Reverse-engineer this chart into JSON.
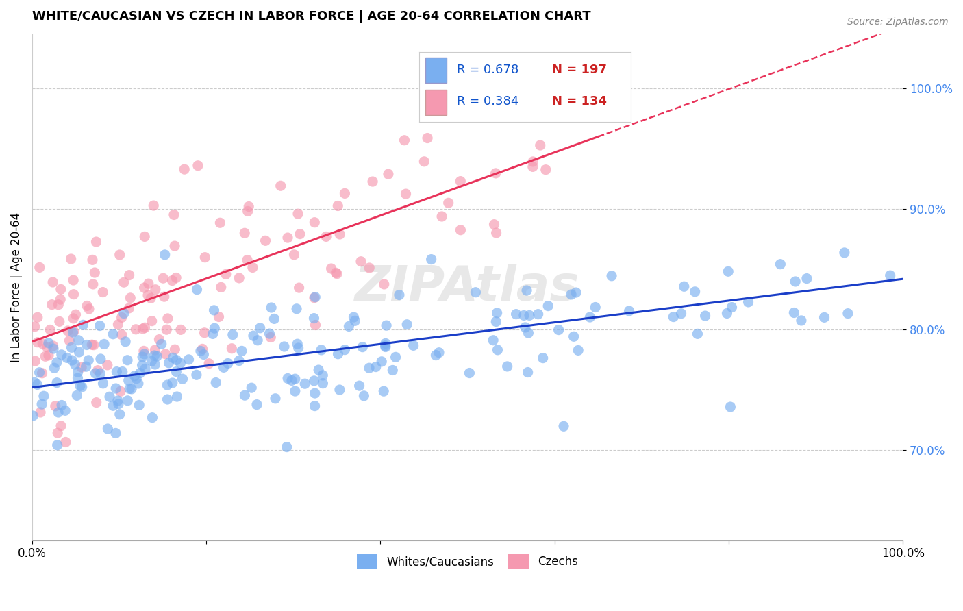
{
  "title": "WHITE/CAUCASIAN VS CZECH IN LABOR FORCE | AGE 20-64 CORRELATION CHART",
  "source": "Source: ZipAtlas.com",
  "ylabel": "In Labor Force | Age 20-64",
  "xlim": [
    0.0,
    1.0
  ],
  "ylim": [
    0.625,
    1.045
  ],
  "ytick_positions": [
    0.7,
    0.8,
    0.9,
    1.0
  ],
  "ytick_labels": [
    "70.0%",
    "80.0%",
    "90.0%",
    "100.0%"
  ],
  "xtick_positions": [
    0.0,
    0.2,
    0.4,
    0.6,
    0.8,
    1.0
  ],
  "xtick_labels": [
    "0.0%",
    "",
    "",
    "",
    "",
    "100.0%"
  ],
  "blue_color": "#7aaff0",
  "pink_color": "#f599b0",
  "blue_line_color": "#1a3ec8",
  "pink_line_color": "#e8335a",
  "dashed_line_color": "#e8335a",
  "legend_blue_R": "R = 0.678",
  "legend_blue_N": "N = 197",
  "legend_pink_R": "R = 0.384",
  "legend_pink_N": "N = 134",
  "watermark": "ZIPAtlas",
  "blue_trend_x0": 0.0,
  "blue_trend_x1": 1.0,
  "blue_trend_y0": 0.752,
  "blue_trend_y1": 0.842,
  "pink_trend_x0": 0.0,
  "pink_trend_x1": 0.65,
  "pink_trend_y0": 0.79,
  "pink_trend_y1": 0.96,
  "dashed_trend_x0": 0.65,
  "dashed_trend_x1": 1.0,
  "dashed_trend_y0": 0.96,
  "dashed_trend_y1": 1.052
}
